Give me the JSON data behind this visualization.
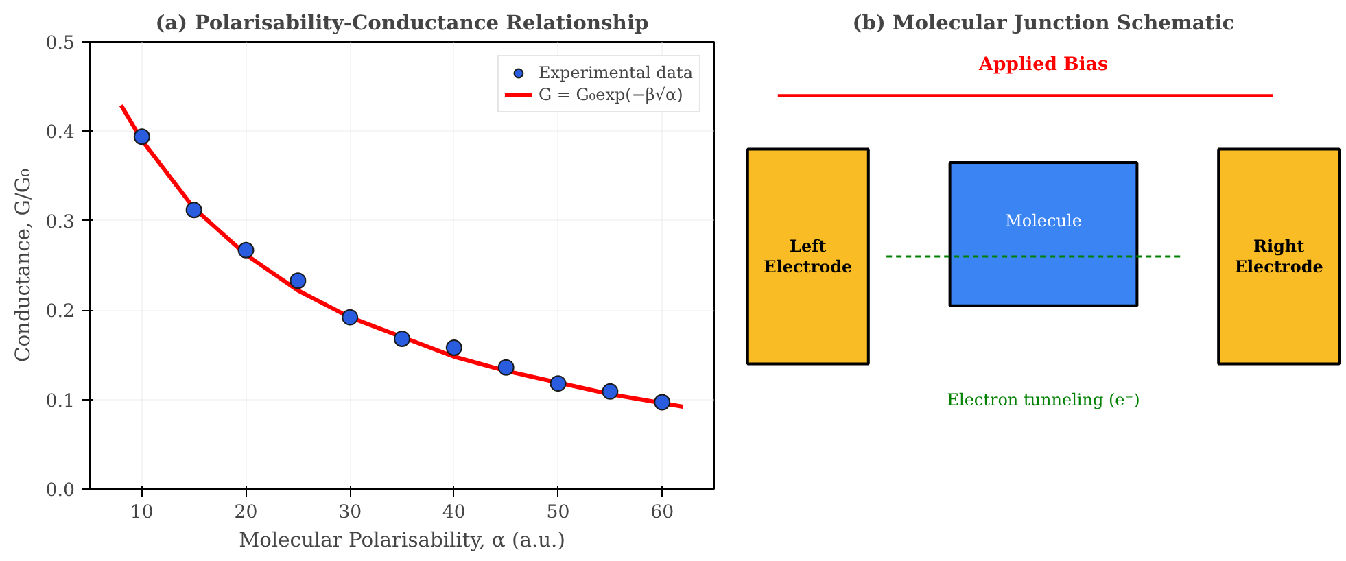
{
  "chart_data": [
    {
      "type": "scatter",
      "title": "(a) Polarisability-Conductance Relationship",
      "xlabel": "Molecular Polarisability, α (a.u.)",
      "ylabel": "Conductance, G/G₀",
      "series": [
        {
          "name": "Experimental data",
          "type": "scatter",
          "color": "#2a5ce0",
          "marker": "circle",
          "x": [
            10,
            15,
            20,
            25,
            30,
            35,
            40,
            45,
            50,
            55,
            60
          ],
          "values": [
            0.394,
            0.312,
            0.267,
            0.233,
            0.192,
            0.168,
            0.158,
            0.136,
            0.118,
            0.109,
            0.097
          ]
        },
        {
          "name": "G = G₀exp(−β√α)",
          "type": "line",
          "color": "#ff0000",
          "line_style": "solid",
          "x": [
            8,
            10,
            15,
            20,
            25,
            30,
            40,
            45,
            55,
            62
          ],
          "values": [
            0.429,
            0.39,
            0.314,
            0.262,
            0.222,
            0.192,
            0.148,
            0.132,
            0.106,
            0.092
          ]
        }
      ],
      "xlim": [
        5,
        65
      ],
      "xticks": [
        10,
        20,
        30,
        40,
        50,
        60
      ],
      "ylim": [
        0,
        0.5
      ],
      "yticks": [
        {
          "value": 0,
          "label": "0.0"
        },
        {
          "value": 0.1,
          "label": "0.1"
        },
        {
          "value": 0.2,
          "label": "0.2"
        },
        {
          "value": 0.3,
          "label": "0.3"
        },
        {
          "value": 0.4,
          "label": "0.4"
        },
        {
          "value": 0.5,
          "label": "0.5"
        }
      ],
      "grid": true,
      "legend": "top right"
    },
    {
      "type": "other",
      "title": "(b) Molecular Junction Schematic",
      "annotations": [
        "Applied Bias",
        "Left\nElectrode",
        "Molecule",
        "Right\nElectrode",
        "Electron tunneling (e⁻)"
      ]
    }
  ]
}
